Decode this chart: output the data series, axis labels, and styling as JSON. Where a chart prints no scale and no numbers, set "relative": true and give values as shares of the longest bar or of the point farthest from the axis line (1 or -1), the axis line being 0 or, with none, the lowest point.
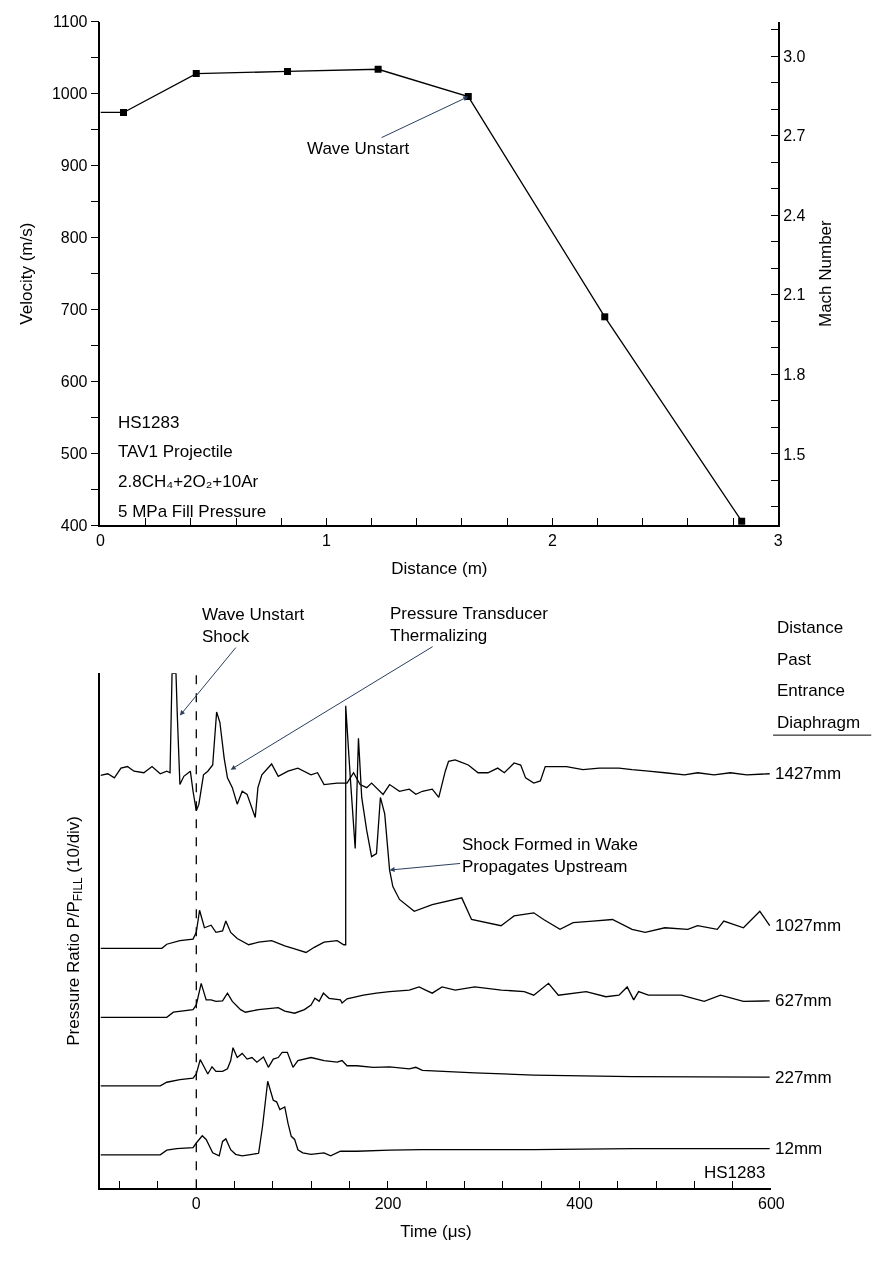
{
  "chart_data": [
    {
      "type": "line",
      "xlabel": "Distance (m)",
      "ylabel": "Velocity (m/s)",
      "y2label": "Mach Number",
      "marker": "square",
      "line_style": "solid",
      "xlim": [
        0,
        3
      ],
      "xticks": [
        0,
        {
          "value": 0.2,
          "label": null
        },
        {
          "value": 0.4,
          "label": null
        },
        {
          "value": 0.6,
          "label": null
        },
        {
          "value": 0.8,
          "label": null
        },
        1,
        {
          "value": 1.2,
          "label": null
        },
        {
          "value": 1.4,
          "label": null
        },
        {
          "value": 1.6,
          "label": null
        },
        {
          "value": 1.8,
          "label": null
        },
        2,
        {
          "value": 2.2,
          "label": null
        },
        {
          "value": 2.4,
          "label": null
        },
        {
          "value": 2.6,
          "label": null
        },
        {
          "value": 2.8,
          "label": null
        },
        3
      ],
      "ylim": [
        400,
        1100
      ],
      "yticks": [
        400,
        {
          "value": 450,
          "label": null
        },
        500,
        {
          "value": 550,
          "label": null
        },
        600,
        {
          "value": 650,
          "label": null
        },
        700,
        {
          "value": 750,
          "label": null
        },
        800,
        {
          "value": 850,
          "label": null
        },
        900,
        {
          "value": 950,
          "label": null
        },
        1000,
        {
          "value": 1050,
          "label": null
        },
        1100
      ],
      "y2lim": [
        1.23,
        3.13
      ],
      "y2ticks": [
        {
          "value": 1.3,
          "label": null
        },
        {
          "value": 1.4,
          "label": null
        },
        1.5,
        {
          "value": 1.6,
          "label": null
        },
        {
          "value": 1.7,
          "label": null
        },
        1.8,
        {
          "value": 1.9,
          "label": null
        },
        {
          "value": 2.0,
          "label": null
        },
        2.1,
        {
          "value": 2.2,
          "label": null
        },
        {
          "value": 2.3,
          "label": null
        },
        2.4,
        {
          "value": 2.5,
          "label": null
        },
        {
          "value": 2.6,
          "label": null
        },
        2.7,
        {
          "value": 2.8,
          "label": null
        },
        {
          "value": 2.9,
          "label": null
        },
        {
          "value": 3.0,
          "label": "3.0"
        },
        {
          "value": 3.1,
          "label": null
        }
      ],
      "series": [
        {
          "color": "#000000",
          "x": [
            0.102,
            0.424,
            0.828,
            1.229,
            1.628,
            2.232,
            2.838
          ],
          "values": [
            974,
            1028,
            1031,
            1034,
            996,
            690,
            406
          ]
        },
        {
          "color": "#000000",
          "marker": "none",
          "x": [
            0,
            0.102
          ],
          "values": [
            974,
            974
          ]
        }
      ],
      "annotations": [
        {
          "text": "Wave Unstart",
          "x": 1.628,
          "y": 996
        },
        "HS1283",
        "TAV1 Projectile",
        "2.8CH₄+2O₂+10Ar",
        "5 MPa Fill Pressure"
      ]
    },
    {
      "type": "line",
      "relative": true,
      "xlabel": "Time (μs)",
      "ylabel": "Pressure Ratio P/P$_{FILL}$ (10/div)",
      "marker": "none",
      "line_style": "solid",
      "xlim": [
        -100,
        600
      ],
      "xticks": [
        {
          "value": -80,
          "label": null
        },
        {
          "value": -40,
          "label": null
        },
        0,
        {
          "value": 40,
          "label": null
        },
        {
          "value": 80,
          "label": null
        },
        {
          "value": 120,
          "label": null
        },
        {
          "value": 160,
          "label": null
        },
        200,
        {
          "value": 240,
          "label": null
        },
        {
          "value": 280,
          "label": null
        },
        {
          "value": 320,
          "label": null
        },
        {
          "value": 360,
          "label": null
        },
        400,
        {
          "value": 440,
          "label": null
        },
        {
          "value": 480,
          "label": null
        },
        {
          "value": 520,
          "label": null
        },
        {
          "value": 560,
          "label": null
        },
        600
      ],
      "ref_lines": [
        {
          "axis": "x",
          "value": 0,
          "color": "#000000",
          "line_style": "dashed"
        }
      ],
      "series": [
        {
          "name": "1427mm",
          "color": "#000000",
          "x": [
            -100,
            -92.3,
            -85.5,
            -78.6,
            -71.8,
            -65,
            -54.7,
            -46.2,
            -37.6,
            -30.8,
            -27.4,
            -25.3,
            -21.2,
            -19.8,
            -17.1,
            -13,
            -6.2,
            -3.4,
            0,
            2.7,
            7.5,
            12,
            17.1,
            21.2,
            24.6,
            29.1,
            32.5,
            37.6,
            42.7,
            47.9,
            53,
            61.5,
            64.3,
            68.4,
            78.6,
            85.5,
            95.7,
            106,
            119.7,
            126.5,
            133.3,
            147,
            157.3,
            164.1,
            170.9,
            177.8,
            182.9,
            194.9,
            201.7,
            212,
            222.2,
            229.1,
            235.9,
            246.2,
            253,
            259.8,
            263.2,
            270.1,
            283.8,
            294,
            304.3,
            314.5,
            321.4,
            331.6,
            338.5,
            343.6,
            352.1,
            359,
            364.1,
            386.3,
            403.4,
            420.5,
            441,
            454.7,
            471.8,
            488.9,
            509.4,
            523.1,
            540.2,
            557.3,
            574.4,
            598.3
          ],
          "values": [
            0.802,
            0.805,
            0.797,
            0.816,
            0.819,
            0.81,
            0.807,
            0.819,
            0.805,
            0.81,
            0.807,
            1,
            1,
            0.918,
            0.784,
            0.8,
            0.81,
            0.771,
            0.733,
            0.746,
            0.803,
            0.81,
            0.822,
            0.925,
            0.905,
            0.835,
            0.797,
            0.778,
            0.746,
            0.771,
            0.765,
            0.72,
            0.778,
            0.803,
            0.824,
            0.8,
            0.81,
            0.816,
            0.803,
            0.807,
            0.784,
            0.787,
            0.787,
            0.807,
            0.784,
            0.778,
            0.787,
            0.765,
            0.784,
            0.771,
            0.775,
            0.765,
            0.771,
            0.775,
            0.759,
            0.81,
            0.829,
            0.832,
            0.822,
            0.807,
            0.807,
            0.816,
            0.807,
            0.826,
            0.822,
            0.797,
            0.787,
            0.791,
            0.819,
            0.819,
            0.813,
            0.816,
            0.816,
            0.813,
            0.81,
            0.807,
            0.803,
            0.807,
            0.803,
            0.807,
            0.803,
            0.805
          ]
        },
        {
          "name": "1027mm",
          "color": "#000000",
          "x": [
            -100,
            -35.9,
            -30.8,
            -17.1,
            -3.4,
            0,
            3.4,
            8.5,
            15.4,
            20.5,
            27.4,
            30.8,
            35.9,
            42.7,
            54.7,
            65,
            78.6,
            92.3,
            102.6,
            114.5,
            123.1,
            133.3,
            147,
            153.8,
            155.9,
            155.9,
            160.7,
            165.8,
            169.2,
            172.6,
            177.8,
            182.9,
            188,
            192.1,
            196.6,
            201.7,
            205.1,
            212,
            227.4,
            246.2,
            277,
            287.2,
            318,
            331.6,
            352.1,
            362.4,
            379.5,
            393.2,
            413.7,
            434.2,
            454.7,
            468.4,
            488.9,
            512.8,
            523.1,
            543.6,
            550.4,
            570.9,
            588,
            598.3
          ],
          "values": [
            0.466,
            0.466,
            0.474,
            0.481,
            0.484,
            0.497,
            0.54,
            0.506,
            0.511,
            0.497,
            0.5,
            0.519,
            0.497,
            0.485,
            0.473,
            0.478,
            0.481,
            0.471,
            0.465,
            0.458,
            0.468,
            0.478,
            0.481,
            0.473,
            0.473,
            0.937,
            0.797,
            0.66,
            0.874,
            0.759,
            0.695,
            0.644,
            0.65,
            0.759,
            0.727,
            0.618,
            0.586,
            0.561,
            0.538,
            0.551,
            0.564,
            0.522,
            0.51,
            0.529,
            0.535,
            0.522,
            0.503,
            0.516,
            0.519,
            0.522,
            0.503,
            0.497,
            0.506,
            0.503,
            0.51,
            0.503,
            0.519,
            0.506,
            0.538,
            0.51
          ]
        },
        {
          "name": "627mm",
          "color": "#000000",
          "x": [
            -100,
            -30.8,
            -23.9,
            -3.4,
            0,
            5.1,
            10.3,
            15.4,
            20.5,
            27.4,
            32.5,
            37.6,
            46.2,
            51.3,
            65,
            85.5,
            92.3,
            102.6,
            112.8,
            119.7,
            123.8,
            128.2,
            132.6,
            138.5,
            150.4,
            152.1,
            157.3,
            174.4,
            188,
            201.7,
            222.2,
            232.5,
            239.3,
            246.2,
            256.4,
            270.1,
            290.6,
            318.3,
            342.2,
            352.1,
            367.5,
            377.8,
            406.8,
            427.4,
            441,
            449.6,
            456.4,
            461.5,
            471.8,
            506,
            529.9,
            547,
            570.9,
            598.3
          ],
          "values": [
            0.332,
            0.332,
            0.342,
            0.347,
            0.356,
            0.398,
            0.366,
            0.366,
            0.363,
            0.364,
            0.379,
            0.363,
            0.347,
            0.342,
            0.347,
            0.351,
            0.344,
            0.34,
            0.347,
            0.356,
            0.369,
            0.363,
            0.379,
            0.369,
            0.366,
            0.36,
            0.368,
            0.375,
            0.379,
            0.382,
            0.385,
            0.391,
            0.385,
            0.379,
            0.391,
            0.385,
            0.391,
            0.385,
            0.382,
            0.375,
            0.398,
            0.375,
            0.382,
            0.372,
            0.375,
            0.391,
            0.366,
            0.382,
            0.375,
            0.375,
            0.363,
            0.375,
            0.363,
            0.364
          ]
        },
        {
          "name": "227mm",
          "color": "#000000",
          "x": [
            -100,
            -37.6,
            -30.8,
            -17.1,
            -3.4,
            0,
            4.1,
            7.5,
            12,
            16.4,
            20.5,
            27.4,
            32.5,
            35.9,
            38.3,
            42.7,
            47.9,
            53,
            58.1,
            63.2,
            70.1,
            75.2,
            80.3,
            85.5,
            89.6,
            95,
            100.9,
            106,
            119.7,
            133.3,
            147,
            152.1,
            157.3,
            167.5,
            184.6,
            201.7,
            222.2,
            229.1,
            235.9,
            290.6,
            352.1,
            454.7,
            598.3
          ],
          "values": [
            0.199,
            0.199,
            0.206,
            0.211,
            0.214,
            0.222,
            0.25,
            0.238,
            0.222,
            0.236,
            0.227,
            0.227,
            0.232,
            0.248,
            0.273,
            0.254,
            0.262,
            0.251,
            0.254,
            0.245,
            0.255,
            0.235,
            0.251,
            0.254,
            0.264,
            0.264,
            0.235,
            0.248,
            0.254,
            0.248,
            0.245,
            0.248,
            0.238,
            0.238,
            0.235,
            0.236,
            0.232,
            0.235,
            0.229,
            0.224,
            0.22,
            0.217,
            0.216
          ]
        },
        {
          "name": "12mm",
          "color": "#000000",
          "x": [
            -100,
            -37.6,
            -30.8,
            -20.5,
            -3.4,
            0,
            6.2,
            10.3,
            17.1,
            23.9,
            27.4,
            30.8,
            35.9,
            41,
            47.9,
            58.1,
            65,
            69.1,
            74.5,
            80.3,
            83.8,
            87.2,
            92.3,
            95.7,
            99.1,
            102.6,
            106,
            111.1,
            119.7,
            133.3,
            140.2,
            150.4,
            167.5,
            201.7,
            235.9,
            290.6,
            352.1,
            454.7,
            598.3
          ],
          "values": [
            0.065,
            0.065,
            0.074,
            0.077,
            0.079,
            0.088,
            0.102,
            0.095,
            0.069,
            0.063,
            0.091,
            0.096,
            0.075,
            0.066,
            0.063,
            0.066,
            0.068,
            0.12,
            0.208,
            0.171,
            0.168,
            0.153,
            0.158,
            0.126,
            0.101,
            0.095,
            0.075,
            0.069,
            0.066,
            0.069,
            0.063,
            0.072,
            0.072,
            0.074,
            0.075,
            0.075,
            0.075,
            0.077,
            0.077
          ]
        }
      ],
      "annotations": [
        {
          "text": "Wave Unstart\nShock",
          "x": -17.1,
          "y": 0.918
        },
        {
          "text": "Pressure Transducer\nThermalizing",
          "x": 35.9,
          "y": 0.813
        },
        {
          "text": "Shock Formed in Wake\nPropagates Upstream",
          "x": 201.7,
          "y": 0.618
        },
        "Distance\nPast\nEntrance\nDiaphragm",
        "HS1283"
      ]
    }
  ]
}
